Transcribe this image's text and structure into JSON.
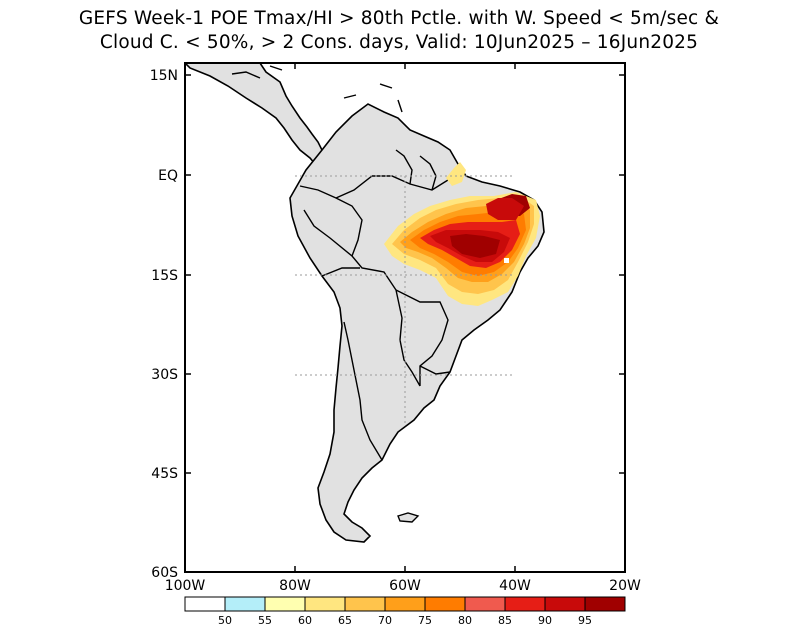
{
  "title": {
    "line1": "GEFS Week-1 POE Tmax/HI > 80th Pctle. with W. Speed < 5m/sec &",
    "line2": "Cloud C. < 50%, > 2 Cons. days, Valid: 10Jun2025 – 16Jun2025"
  },
  "map": {
    "region": "South America",
    "lon_range": [
      -100,
      -20
    ],
    "lat_range": [
      -60,
      15
    ],
    "lon_ticks": [
      "100W",
      "80W",
      "60W",
      "40W",
      "20W"
    ],
    "lat_ticks": [
      "15N",
      "EQ",
      "15S",
      "30S",
      "45S",
      "60S"
    ],
    "land_color": "#e1e1e1",
    "coast_color": "#000000",
    "gridline_style": "dotted grey"
  },
  "colorbar": {
    "labels": [
      "50",
      "55",
      "60",
      "65",
      "70",
      "75",
      "80",
      "85",
      "90",
      "95"
    ],
    "colors": [
      "#ffffff",
      "#b4eef9",
      "#ffffb0",
      "#ffe680",
      "#ffc44c",
      "#ff9f1a",
      "#ff7c00",
      "#f05a4e",
      "#e61e16",
      "#c80a0a",
      "#a00000"
    ]
  }
}
